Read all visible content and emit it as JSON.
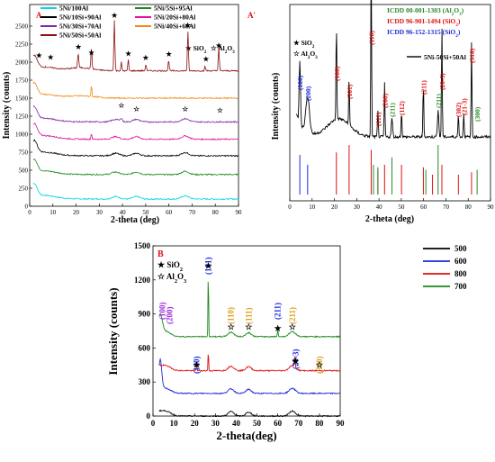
{
  "chart_data": [
    {
      "panel": "A",
      "type": "line",
      "xlabel": "2-theta (deg)",
      "ylabel": "Intensity (counts)",
      "xlim": [
        0,
        90
      ],
      "ylim": [
        0,
        2800
      ],
      "xticks": [
        0,
        10,
        20,
        30,
        40,
        50,
        60,
        70,
        80,
        90
      ],
      "yticks": [
        0,
        250,
        500,
        750,
        1000,
        1250,
        1500,
        1750,
        2000,
        2250,
        2500
      ],
      "legend_position": "top",
      "series": [
        {
          "name": "5Ni/100Al",
          "color": "#00d8e8",
          "offset": 100
        },
        {
          "name": "5Ni/5Si+95Al",
          "color": "#1a8a1a",
          "offset": 440
        },
        {
          "name": "5Ni/10Si+90Al",
          "color": "#000000",
          "offset": 700
        },
        {
          "name": "5Ni/20Si+80Al",
          "color": "#e0109a",
          "offset": 930
        },
        {
          "name": "5Ni/30Si+70Al",
          "color": "#7a2aa8",
          "offset": 1170
        },
        {
          "name": "5Ni/40Si+60Al",
          "color": "#f28a1a",
          "offset": 1500
        },
        {
          "name": "5Ni/50Si+50Al",
          "color": "#8a1010",
          "offset": 1880
        }
      ],
      "annotations": {
        "sio2": "SiO",
        "al2o3": "Al",
        "o": "O",
        "sub2": "2",
        "sub3": "3",
        "star": "★",
        "open_star": "☆"
      }
    },
    {
      "panel": "A'",
      "type": "line",
      "xlabel": "2-theta (deg)",
      "ylabel": "Intensity (counts)",
      "xlim": [
        0,
        90
      ],
      "xticks": [
        0,
        10,
        20,
        30,
        40,
        50,
        60,
        70,
        80,
        90
      ],
      "references": [
        {
          "label": "ICDD 00-001-1303 (Al",
          "suffix": "O",
          "sub1": "2",
          "sub2": "3",
          "color": "#2a8a2a"
        },
        {
          "label": "ICDD 96-901-1494 (SiO",
          "sub1": "2",
          "color": "#e01010"
        },
        {
          "label": "ICDD 96-152-1315 (SiO",
          "sub1": "2",
          "color": "#1a2ad8"
        }
      ],
      "series": [
        {
          "name": "5Ni-50Si+50Al",
          "color": "#000000"
        }
      ],
      "peak_labels": [
        {
          "text": "(100)",
          "x": 4.5,
          "color": "#1a2ad8"
        },
        {
          "text": "(200)",
          "x": 8,
          "color": "#1a2ad8"
        },
        {
          "text": "(100)",
          "x": 20.9,
          "color": "#e01010"
        },
        {
          "text": "(101)",
          "x": 26.6,
          "color": "#e01010"
        },
        {
          "text": "(110)",
          "x": 36.5,
          "color": "#e01010"
        },
        {
          "text": "(111)",
          "x": 39.5,
          "color": "#e01010"
        },
        {
          "text": "(200)",
          "x": 42.5,
          "color": "#e01010"
        },
        {
          "text": "(211)",
          "x": 45.8,
          "color": "#2a8a2a"
        },
        {
          "text": "(112)",
          "x": 50.1,
          "color": "#e01010"
        },
        {
          "text": "(211)",
          "x": 60,
          "color": "#e01010"
        },
        {
          "text": "(211)",
          "x": 66.5,
          "color": "#2a8a2a"
        },
        {
          "text": "(20-3)",
          "x": 68.3,
          "color": "#e01010"
        },
        {
          "text": "(302)",
          "x": 75.5,
          "color": "#e01010"
        },
        {
          "text": "(21-3)",
          "x": 78,
          "color": "#e01010"
        },
        {
          "text": "(310)",
          "x": 81.5,
          "color": "#e01010"
        },
        {
          "text": "(300)",
          "x": 84,
          "color": "#2a8a2a"
        }
      ],
      "annotations": {
        "sio2": "SiO",
        "al2o3": "Al",
        "o": "O",
        "sub2": "2",
        "sub3": "3",
        "star": "★",
        "open_star": "☆"
      }
    },
    {
      "panel": "B",
      "type": "line",
      "xlabel": "2-theta(deg)",
      "ylabel": "Intensity (counts)",
      "xlim": [
        0,
        90
      ],
      "ylim": [
        0,
        1500
      ],
      "xticks": [
        0,
        10,
        20,
        30,
        40,
        50,
        60,
        70,
        80,
        90
      ],
      "yticks": [
        0,
        300,
        600,
        900,
        1200,
        1500
      ],
      "legend_position": "top-right",
      "series": [
        {
          "name": "500",
          "color": "#000000",
          "offset": 0
        },
        {
          "name": "600",
          "color": "#1a2ad8",
          "offset": 200
        },
        {
          "name": "800",
          "color": "#e01010",
          "offset": 400
        },
        {
          "name": "700",
          "color": "#1a8a1a",
          "offset": 700
        }
      ],
      "peak_labels": [
        {
          "text": "(100)",
          "x": 4.5,
          "color": "#9a2ad8"
        },
        {
          "text": "(200)",
          "x": 8,
          "color": "#9a2ad8"
        },
        {
          "text": "(101)",
          "x": 26.6,
          "color": "#1a2ad8"
        },
        {
          "text": "(110)",
          "x": 37.5,
          "color": "#d8a01a"
        },
        {
          "text": "(111)",
          "x": 46,
          "color": "#d8a01a"
        },
        {
          "text": "(211)",
          "x": 60,
          "color": "#1a2ad8"
        },
        {
          "text": "(211)",
          "x": 67,
          "color": "#d8a01a"
        },
        {
          "text": "(100)",
          "x": 21,
          "color": "#1a2ad8"
        },
        {
          "text": "(20-3)",
          "x": 68.5,
          "color": "#1a2ad8"
        },
        {
          "text": "(300)",
          "x": 80,
          "color": "#d8a01a"
        }
      ],
      "annotations": {
        "sio2": "SiO",
        "al2o3": "Al",
        "o": "O",
        "sub2": "2",
        "sub3": "3",
        "star": "★",
        "open_star": "☆"
      }
    }
  ]
}
